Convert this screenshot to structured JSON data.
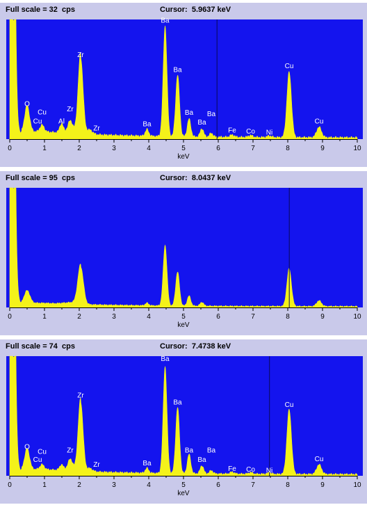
{
  "colors": {
    "plot_bg": "#1414ee",
    "trace": "#f4f21a",
    "panel_bg": "#c9c9ea",
    "label": "#ffffff",
    "cursor": "#0a0a5a"
  },
  "chart_data": [
    {
      "type": "area",
      "header": {
        "full_scale": "Full scale = 32  cps",
        "cursor": "Cursor:  5.9637 keV"
      },
      "cursor_kev": 5.9637,
      "full_scale_cps": 32,
      "xlabel": "keV",
      "xlim": [
        0,
        10
      ],
      "ylim": [
        0,
        32
      ],
      "x_ticks": [
        "0",
        "1",
        "2",
        "3",
        "4",
        "5",
        "6",
        "7",
        "8",
        "9",
        "10"
      ],
      "grid": false,
      "peaks": [
        {
          "kev": 0.5,
          "cps": 7.0,
          "w": 0.07
        },
        {
          "kev": 0.93,
          "cps": 1.8,
          "w": 0.06
        },
        {
          "kev": 1.49,
          "cps": 2.2,
          "w": 0.05
        },
        {
          "kev": 1.74,
          "cps": 2.8,
          "w": 0.06
        },
        {
          "kev": 2.04,
          "cps": 20.5,
          "w": 0.07
        },
        {
          "kev": 2.3,
          "cps": 1.2,
          "w": 0.08
        },
        {
          "kev": 3.95,
          "cps": 1.8,
          "w": 0.05
        },
        {
          "kev": 4.47,
          "cps": 29.5,
          "w": 0.055
        },
        {
          "kev": 4.83,
          "cps": 16.5,
          "w": 0.055
        },
        {
          "kev": 5.16,
          "cps": 4.8,
          "w": 0.05
        },
        {
          "kev": 5.53,
          "cps": 2.2,
          "w": 0.05
        },
        {
          "kev": 5.8,
          "cps": 1.0,
          "w": 0.05
        },
        {
          "kev": 6.4,
          "cps": 0.6,
          "w": 0.06
        },
        {
          "kev": 6.93,
          "cps": 0.5,
          "w": 0.06
        },
        {
          "kev": 7.47,
          "cps": 0.4,
          "w": 0.06
        },
        {
          "kev": 8.04,
          "cps": 17.5,
          "w": 0.065
        },
        {
          "kev": 8.9,
          "cps": 2.8,
          "w": 0.07
        }
      ],
      "background": {
        "cps_at_1": 2.0,
        "cps_at_10": 0.4,
        "zero_peak_cps": 32
      },
      "annotations": [
        {
          "text": "O",
          "kev": 0.5,
          "cps": 8.8
        },
        {
          "text": "Cu",
          "kev": 0.93,
          "cps": 6.6
        },
        {
          "text": "Cu",
          "kev": 0.8,
          "cps": 4.2
        },
        {
          "text": "Al",
          "kev": 1.49,
          "cps": 4.2
        },
        {
          "text": "Zr",
          "kev": 1.74,
          "cps": 7.4
        },
        {
          "text": "Zr",
          "kev": 2.04,
          "cps": 22.0
        },
        {
          "text": "Zr",
          "kev": 2.5,
          "cps": 2.3
        },
        {
          "text": "Ba",
          "kev": 3.95,
          "cps": 3.4
        },
        {
          "text": "Ba",
          "kev": 4.47,
          "cps": 31.2
        },
        {
          "text": "Ba",
          "kev": 4.83,
          "cps": 18.0
        },
        {
          "text": "Ba",
          "kev": 5.16,
          "cps": 6.5
        },
        {
          "text": "Ba",
          "kev": 5.53,
          "cps": 3.9
        },
        {
          "text": "Ba",
          "kev": 5.8,
          "cps": 6.1
        },
        {
          "text": "Fe",
          "kev": 6.4,
          "cps": 1.8
        },
        {
          "text": "Co",
          "kev": 6.93,
          "cps": 1.5
        },
        {
          "text": "Ni",
          "kev": 7.47,
          "cps": 1.2
        },
        {
          "text": "Cu",
          "kev": 8.04,
          "cps": 19.0
        },
        {
          "text": "Cu",
          "kev": 8.9,
          "cps": 4.2
        }
      ]
    },
    {
      "type": "area",
      "header": {
        "full_scale": "Full scale = 95  cps",
        "cursor": "Cursor:  8.0437 keV"
      },
      "cursor_kev": 8.0437,
      "full_scale_cps": 95,
      "xlabel": "keV",
      "xlim": [
        0,
        10
      ],
      "ylim": [
        0,
        95
      ],
      "x_ticks": [
        "0",
        "1",
        "2",
        "3",
        "4",
        "5",
        "6",
        "7",
        "8",
        "9",
        "10"
      ],
      "grid": false,
      "peaks": [
        {
          "kev": 0.5,
          "cps": 10,
          "w": 0.08
        },
        {
          "kev": 2.04,
          "cps": 30,
          "w": 0.08
        },
        {
          "kev": 3.95,
          "cps": 2,
          "w": 0.05
        },
        {
          "kev": 4.47,
          "cps": 48,
          "w": 0.055
        },
        {
          "kev": 4.83,
          "cps": 27,
          "w": 0.055
        },
        {
          "kev": 5.16,
          "cps": 8,
          "w": 0.05
        },
        {
          "kev": 5.53,
          "cps": 3,
          "w": 0.05
        },
        {
          "kev": 8.04,
          "cps": 30,
          "w": 0.065
        },
        {
          "kev": 8.9,
          "cps": 4.5,
          "w": 0.07
        }
      ],
      "background": {
        "cps_at_1": 3.5,
        "cps_at_10": 0.8,
        "zero_peak_cps": 95
      },
      "annotations": []
    },
    {
      "type": "area",
      "header": {
        "full_scale": "Full scale = 74  cps",
        "cursor": "Cursor:  7.4738 keV"
      },
      "cursor_kev": 7.4738,
      "full_scale_cps": 74,
      "xlabel": "keV",
      "xlim": [
        0,
        10
      ],
      "ylim": [
        0,
        74
      ],
      "x_ticks": [
        "0",
        "1",
        "2",
        "3",
        "4",
        "5",
        "6",
        "7",
        "8",
        "9",
        "10"
      ],
      "grid": false,
      "peaks": [
        {
          "kev": 0.5,
          "cps": 13,
          "w": 0.07
        },
        {
          "kev": 0.93,
          "cps": 3,
          "w": 0.06
        },
        {
          "kev": 1.49,
          "cps": 3,
          "w": 0.05
        },
        {
          "kev": 1.74,
          "cps": 6,
          "w": 0.06
        },
        {
          "kev": 2.04,
          "cps": 43,
          "w": 0.07
        },
        {
          "kev": 2.3,
          "cps": 2,
          "w": 0.08
        },
        {
          "kev": 3.95,
          "cps": 3,
          "w": 0.05
        },
        {
          "kev": 4.47,
          "cps": 66,
          "w": 0.055
        },
        {
          "kev": 4.83,
          "cps": 41,
          "w": 0.055
        },
        {
          "kev": 5.16,
          "cps": 12,
          "w": 0.05
        },
        {
          "kev": 5.53,
          "cps": 5,
          "w": 0.05
        },
        {
          "kev": 5.8,
          "cps": 2,
          "w": 0.05
        },
        {
          "kev": 6.4,
          "cps": 1.2,
          "w": 0.06
        },
        {
          "kev": 6.93,
          "cps": 1,
          "w": 0.06
        },
        {
          "kev": 7.47,
          "cps": 0.8,
          "w": 0.06
        },
        {
          "kev": 8.04,
          "cps": 40,
          "w": 0.065
        },
        {
          "kev": 8.9,
          "cps": 6,
          "w": 0.07
        }
      ],
      "background": {
        "cps_at_1": 4.0,
        "cps_at_10": 0.9,
        "zero_peak_cps": 74
      },
      "annotations": [
        {
          "text": "O",
          "kev": 0.5,
          "cps": 16.5
        },
        {
          "text": "Cu",
          "kev": 0.93,
          "cps": 13.5
        },
        {
          "text": "Cu",
          "kev": 0.8,
          "cps": 8.5
        },
        {
          "text": "Zr",
          "kev": 1.74,
          "cps": 14.5
        },
        {
          "text": "Zr",
          "kev": 2.04,
          "cps": 48.5
        },
        {
          "text": "Zr",
          "kev": 2.5,
          "cps": 5.5
        },
        {
          "text": "Ba",
          "kev": 3.95,
          "cps": 6.5
        },
        {
          "text": "Ba",
          "kev": 4.47,
          "cps": 71.0
        },
        {
          "text": "Ba",
          "kev": 4.83,
          "cps": 44.0
        },
        {
          "text": "Ba",
          "kev": 5.16,
          "cps": 14.5
        },
        {
          "text": "Ba",
          "kev": 5.53,
          "cps": 8.5
        },
        {
          "text": "Ba",
          "kev": 5.8,
          "cps": 14.5
        },
        {
          "text": "Fe",
          "kev": 6.4,
          "cps": 3.0
        },
        {
          "text": "Co",
          "kev": 6.93,
          "cps": 2.5
        },
        {
          "text": "Ni",
          "kev": 7.47,
          "cps": 2.0
        },
        {
          "text": "Cu",
          "kev": 8.04,
          "cps": 42.5
        },
        {
          "text": "Cu",
          "kev": 8.9,
          "cps": 9.0
        }
      ]
    }
  ]
}
